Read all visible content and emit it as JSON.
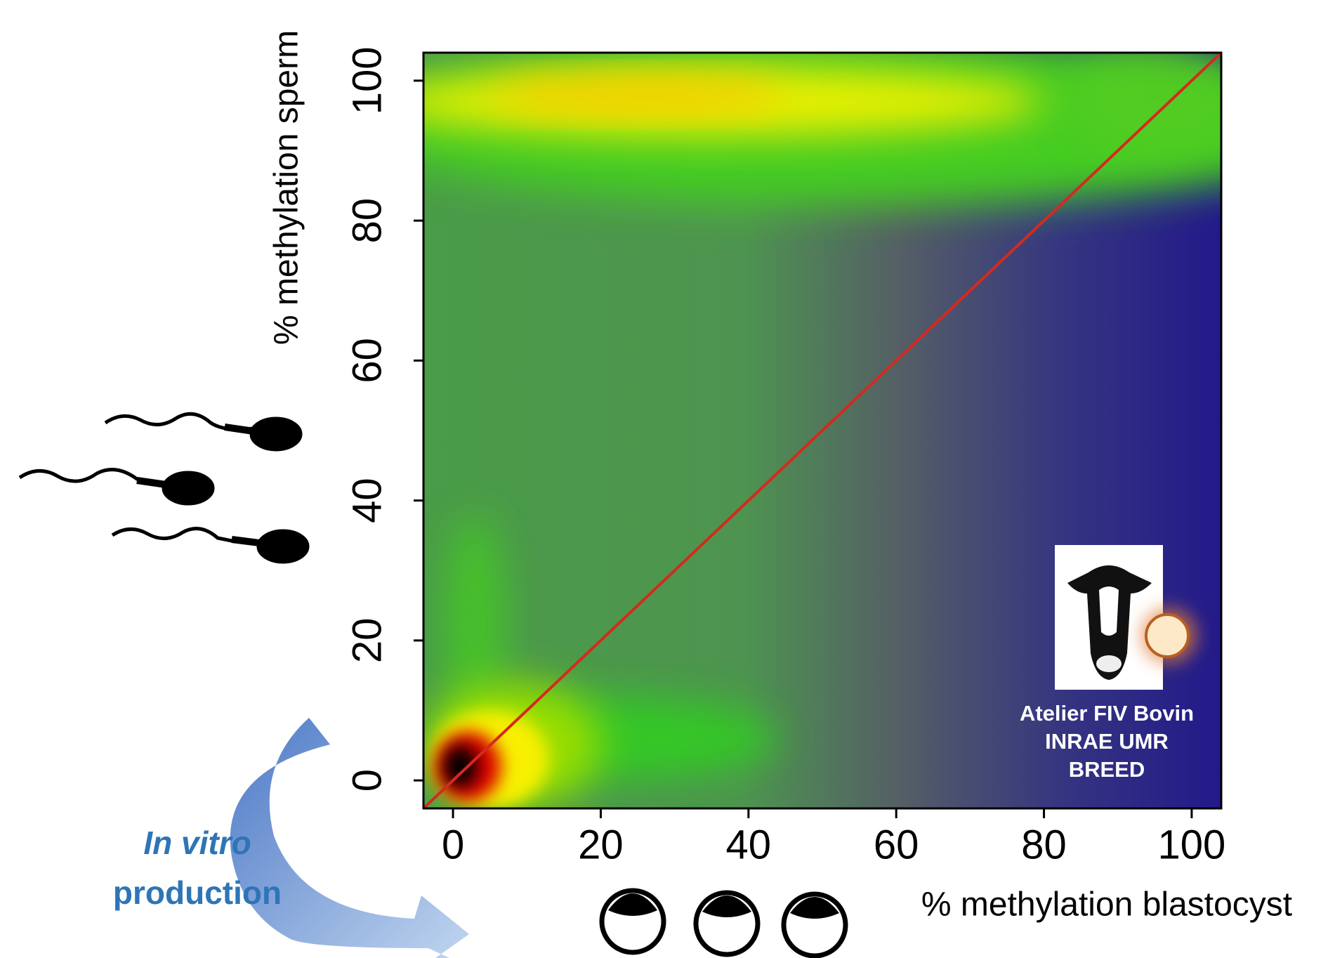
{
  "chart_data": {
    "type": "density",
    "x_label": "% methylation blastocyst",
    "y_label": "% methylation sperm",
    "xlim": [
      -4,
      104
    ],
    "ylim": [
      -4,
      104
    ],
    "xticks": [
      0,
      20,
      40,
      60,
      80,
      100
    ],
    "yticks": [
      0,
      20,
      40,
      60,
      80,
      100
    ],
    "series": [
      {
        "color": "#d42a1e",
        "x": [
          -4,
          104
        ],
        "values": [
          -4,
          104
        ]
      }
    ],
    "annotations": [
      "In vitro",
      "production"
    ],
    "logo_text": [
      "Atelier FIV Bovin",
      "INRAE UMR",
      "BREED"
    ]
  }
}
